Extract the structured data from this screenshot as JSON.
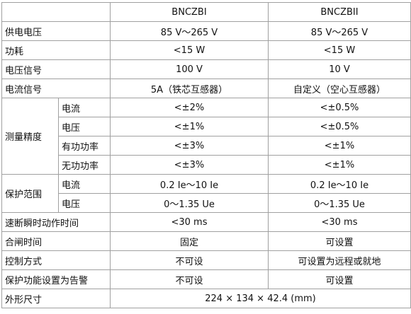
{
  "table": {
    "header": [
      "BNCZBI",
      "BNCZBII"
    ],
    "rows": [
      {
        "label": "供电电压",
        "values": [
          "85 V～265 V",
          "85 V～265 V"
        ]
      },
      {
        "label": "功耗",
        "values": [
          "<15 W",
          "<15 W"
        ]
      },
      {
        "label": "电压信号",
        "values": [
          "100 V",
          "10 V"
        ]
      },
      {
        "label": "电流信号",
        "values": [
          "5A（铁芯互感器）",
          "自定义（空心互感器）"
        ]
      },
      {
        "label": "测量精度",
        "sub": [
          {
            "label": "电流",
            "values": [
              "<±2%",
              "<±0.5%"
            ]
          },
          {
            "label": "电压",
            "values": [
              "<±1%",
              "<±0.5%"
            ]
          },
          {
            "label": "有功功率",
            "values": [
              "<±3%",
              "<±1%"
            ]
          },
          {
            "label": "无功功率",
            "values": [
              "<±3%",
              "<±1%"
            ]
          }
        ]
      },
      {
        "label": "保护范围",
        "sub": [
          {
            "label": "电流",
            "values": [
              "0.2 Ie～10 Ie",
              "0.2 Ie～10 Ie"
            ]
          },
          {
            "label": "电压",
            "values": [
              "0～1.35 Ue",
              "0～1.35 Ue"
            ]
          }
        ]
      },
      {
        "label": "速断瞬时动作时间",
        "values": [
          "<30 ms",
          "<30 ms"
        ]
      },
      {
        "label": "合闸时间",
        "values": [
          "固定",
          "可设置"
        ]
      },
      {
        "label": "控制方式",
        "values": [
          "不可设",
          "可设置为远程或就地"
        ]
      },
      {
        "label": "保护功能设置为告警",
        "values": [
          "不可设",
          "可设置"
        ]
      },
      {
        "label": "外形尺寸",
        "value": "224 × 134 × 42.4 (mm)"
      }
    ]
  }
}
